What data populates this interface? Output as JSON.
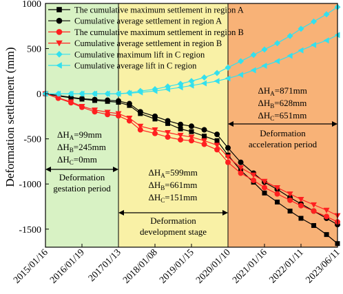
{
  "chart_data": {
    "type": "line",
    "ylabel": "Deformation settlement (mm)",
    "xlabel": "",
    "ylim": [
      -1700,
      1000
    ],
    "yticks": [
      1000,
      500,
      0,
      -500,
      -1000,
      -1500
    ],
    "y_tick_labels": [
      "1000",
      "500",
      "0",
      "-500",
      "-1000",
      "-1500"
    ],
    "x_tick_labels": [
      "2015/01/16",
      "2016/01/19",
      "201701/13",
      "2018/01/08",
      "2019/01/15",
      "2020/01/10",
      "2021/01/16",
      "2022/01/11",
      "2023/06/11"
    ],
    "x": [
      0,
      0.35,
      0.7,
      1,
      1.35,
      1.7,
      2,
      2.3,
      2.6,
      3,
      3.35,
      3.7,
      4,
      4.35,
      4.7,
      5,
      5.35,
      5.7,
      6,
      6.35,
      6.7,
      7,
      7.35,
      7.7,
      8
    ],
    "series": [
      {
        "name": "The cumulative maximum settlement in region A",
        "color": "#000000",
        "marker": "square",
        "values": [
          0,
          -25,
          -45,
          -60,
          -75,
          -85,
          -95,
          -130,
          -220,
          -280,
          -330,
          -390,
          -420,
          -470,
          -520,
          -680,
          -850,
          -980,
          -1100,
          -1200,
          -1300,
          -1380,
          -1460,
          -1560,
          -1660
        ]
      },
      {
        "name": "Cumulative average settlement in region A",
        "color": "#000000",
        "marker": "circle",
        "values": [
          0,
          -20,
          -40,
          -55,
          -65,
          -72,
          -80,
          -110,
          -200,
          -250,
          -300,
          -340,
          -360,
          -400,
          -450,
          -600,
          -760,
          -880,
          -980,
          -1060,
          -1150,
          -1220,
          -1300,
          -1380,
          -1450
        ]
      },
      {
        "name": "The cumulative maximum settlement in region B",
        "color": "#ff2020",
        "marker": "circle",
        "values": [
          0,
          -50,
          -100,
          -150,
          -200,
          -230,
          -245,
          -300,
          -400,
          -440,
          -480,
          -510,
          -520,
          -560,
          -620,
          -760,
          -880,
          -960,
          -1040,
          -1110,
          -1180,
          -1240,
          -1300,
          -1360,
          -1420
        ]
      },
      {
        "name": "Cumulative average settlement in region B",
        "color": "#ff2020",
        "marker": "triangle-down",
        "values": [
          0,
          -45,
          -90,
          -140,
          -180,
          -205,
          -220,
          -270,
          -360,
          -400,
          -430,
          -460,
          -480,
          -520,
          -570,
          -700,
          -820,
          -900,
          -970,
          -1040,
          -1110,
          -1170,
          -1230,
          -1290,
          -1350
        ]
      },
      {
        "name": "Cumulative maximum lift in C region",
        "color": "#33e0ee",
        "marker": "diamond",
        "values": [
          0,
          0,
          0,
          0,
          0,
          0,
          0,
          10,
          30,
          50,
          80,
          110,
          140,
          180,
          230,
          290,
          360,
          430,
          490,
          560,
          640,
          720,
          800,
          880,
          960
        ]
      },
      {
        "name": "Cumulative average lift in C region",
        "color": "#33e0ee",
        "marker": "triangle-left",
        "values": [
          0,
          0,
          0,
          0,
          0,
          0,
          0,
          5,
          15,
          30,
          50,
          70,
          90,
          115,
          140,
          170,
          210,
          260,
          310,
          360,
          420,
          480,
          540,
          590,
          650
        ]
      }
    ],
    "regions": [
      {
        "name": "gestation",
        "from": 0,
        "to": 2,
        "color": "#d8f2c4"
      },
      {
        "name": "development",
        "from": 2,
        "to": 5,
        "color": "#f9f1a6"
      },
      {
        "name": "acceleration",
        "from": 5,
        "to": 8,
        "color": "#f8b277"
      }
    ],
    "annotations": [
      {
        "id": "gestation",
        "lines": [
          "ΔH_A=99mm",
          "ΔH_B=245mm",
          "ΔH_C=0mm"
        ],
        "label": [
          "Deformation",
          "gestation period"
        ]
      },
      {
        "id": "development",
        "lines": [
          "ΔH_A=599mm",
          "ΔH_B=661mm",
          "ΔH_C=151mm"
        ],
        "label": [
          "Deformation",
          "development stage"
        ]
      },
      {
        "id": "acceleration",
        "lines": [
          "ΔH_A=871mm",
          "ΔH_B=628mm",
          "ΔH_C=651mm"
        ],
        "label": [
          "Deformation",
          "acceleration period"
        ]
      }
    ],
    "legend_position": "top-left",
    "grid": false
  }
}
